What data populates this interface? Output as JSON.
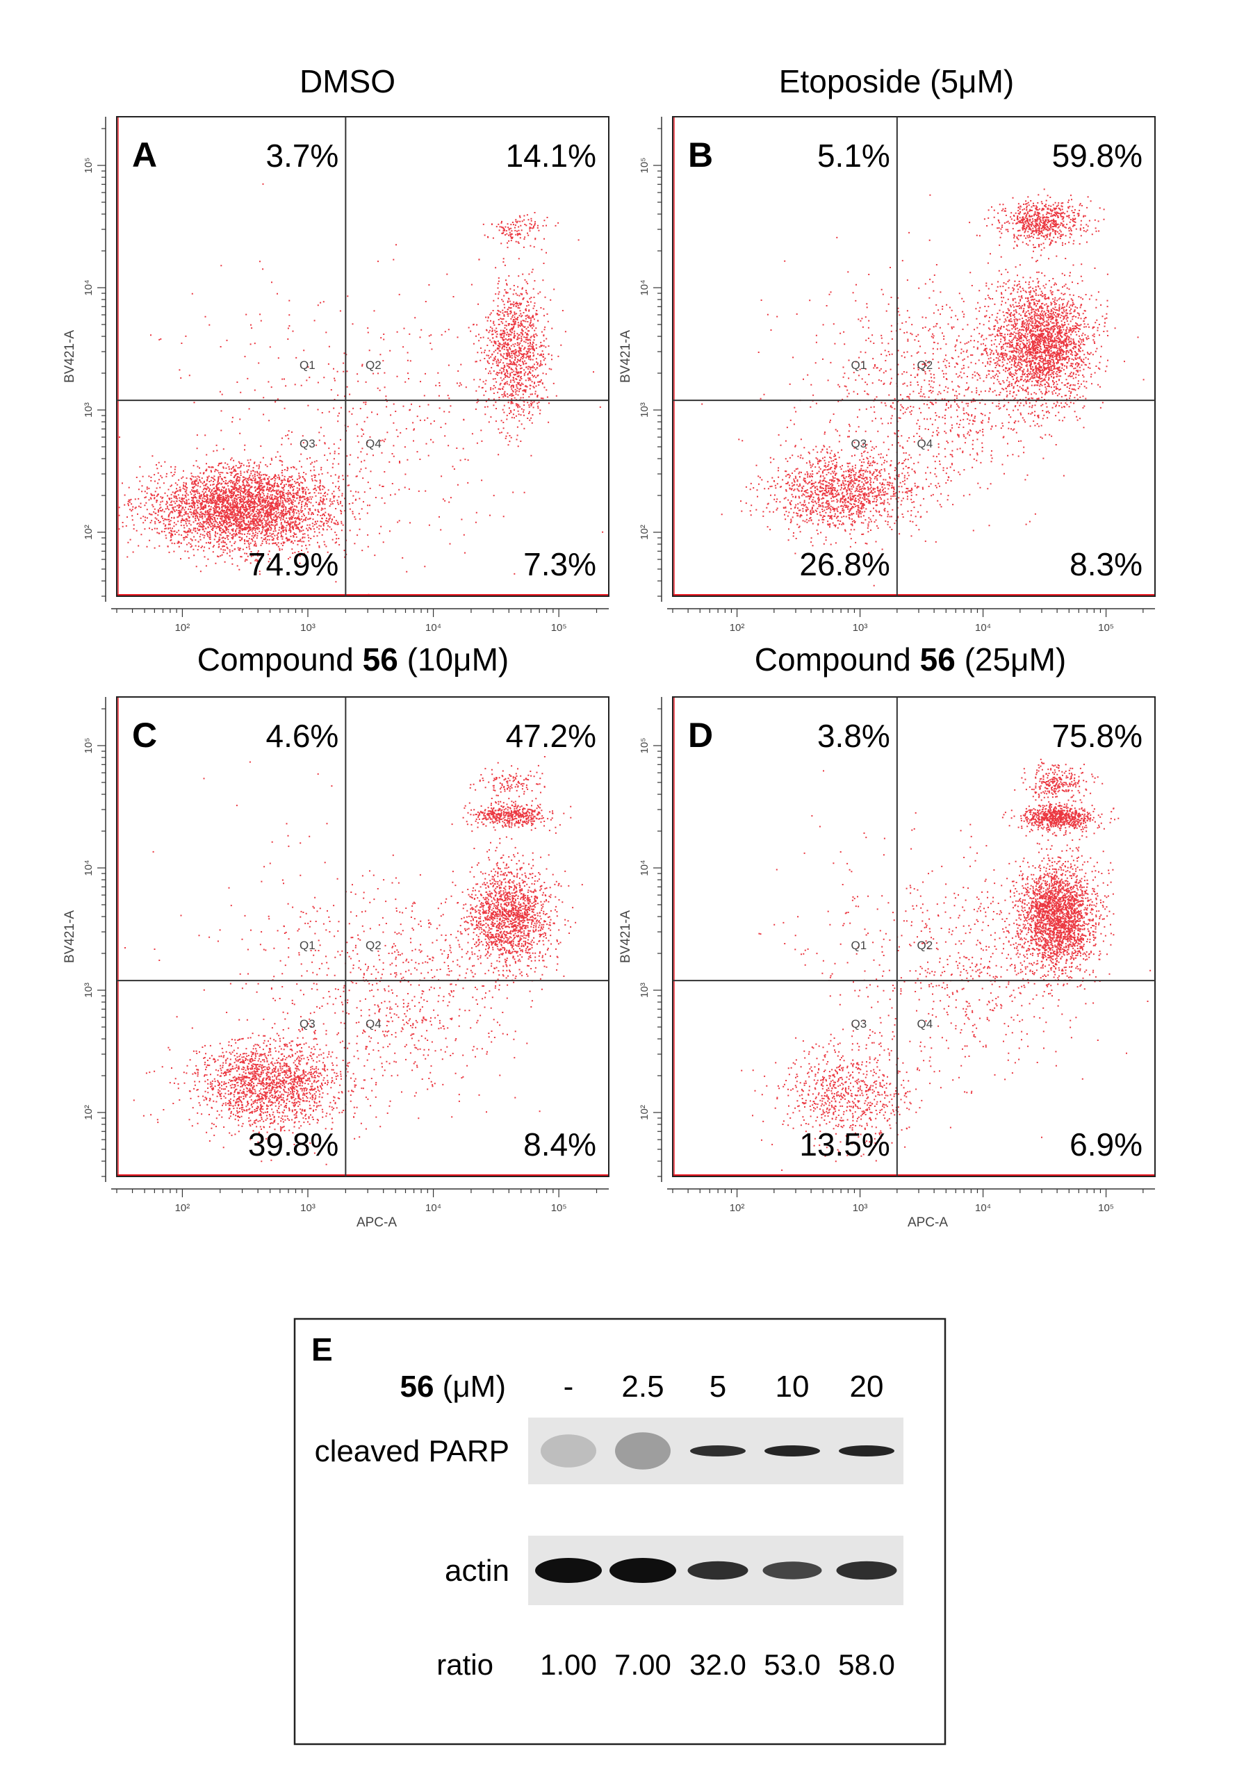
{
  "chart_data": [
    {
      "type": "scatter",
      "panel_id": "A",
      "title": "DMSO",
      "title_parts": [
        {
          "text": "DMSO",
          "bold": false
        }
      ],
      "xlabel": "",
      "ylabel": "BV421-A",
      "log_scale": true,
      "xlim": [
        30,
        250000
      ],
      "ylim": [
        30,
        250000
      ],
      "x_ticks": [
        "10²",
        "10³",
        "10⁴",
        "10⁵"
      ],
      "y_ticks": [
        "10²",
        "10³",
        "10⁴",
        "10⁵"
      ],
      "gate": {
        "x": 2000,
        "y": 1200
      },
      "quadrant_names": [
        "Q1",
        "Q2",
        "Q3",
        "Q4"
      ],
      "quadrant_percent": {
        "Q1": "3.7%",
        "Q2": "14.1%",
        "Q3": "74.9%",
        "Q4": "7.3%"
      },
      "point_color": "#e8141e",
      "clusters": [
        {
          "x": 300,
          "y": 160,
          "spread": [
            0.38,
            0.17
          ],
          "count": 3400
        },
        {
          "x": 45000,
          "y": 3000,
          "spread": [
            0.13,
            0.28
          ],
          "count": 1050
        },
        {
          "x": 45000,
          "y": 30000,
          "spread": [
            0.13,
            0.06
          ],
          "count": 120
        },
        {
          "x": 5000,
          "y": 700,
          "spread": [
            0.5,
            0.5
          ],
          "count": 300
        },
        {
          "x": 500,
          "y": 2000,
          "spread": [
            0.45,
            0.45
          ],
          "count": 110
        }
      ]
    },
    {
      "type": "scatter",
      "panel_id": "B",
      "title": "Etoposide (5μM)",
      "title_parts": [
        {
          "text": "Etoposide (5μM)",
          "bold": false
        }
      ],
      "xlabel": "",
      "ylabel": "BV421-A",
      "log_scale": true,
      "xlim": [
        30,
        250000
      ],
      "ylim": [
        30,
        250000
      ],
      "x_ticks": [
        "10²",
        "10³",
        "10⁴",
        "10⁵"
      ],
      "y_ticks": [
        "10²",
        "10³",
        "10⁴",
        "10⁵"
      ],
      "gate": {
        "x": 2000,
        "y": 1200
      },
      "quadrant_names": [
        "Q1",
        "Q2",
        "Q3",
        "Q4"
      ],
      "quadrant_percent": {
        "Q1": "5.1%",
        "Q2": "59.8%",
        "Q3": "26.8%",
        "Q4": "8.3%"
      },
      "point_color": "#e8141e",
      "clusters": [
        {
          "x": 700,
          "y": 220,
          "spread": [
            0.3,
            0.16
          ],
          "count": 1300
        },
        {
          "x": 30000,
          "y": 3500,
          "spread": [
            0.2,
            0.25
          ],
          "count": 2300
        },
        {
          "x": 30000,
          "y": 35000,
          "spread": [
            0.17,
            0.09
          ],
          "count": 650
        },
        {
          "x": 6000,
          "y": 1500,
          "spread": [
            0.42,
            0.42
          ],
          "count": 700
        },
        {
          "x": 1500,
          "y": 1500,
          "spread": [
            0.5,
            0.5
          ],
          "count": 220
        }
      ]
    },
    {
      "type": "scatter",
      "panel_id": "C",
      "title": "Compound 56 (10μM)",
      "title_parts": [
        {
          "text": "Compound ",
          "bold": false
        },
        {
          "text": "56",
          "bold": true
        },
        {
          "text": " (10μM)",
          "bold": false
        }
      ],
      "xlabel": "APC-A",
      "ylabel": "BV421-A",
      "log_scale": true,
      "xlim": [
        30,
        250000
      ],
      "ylim": [
        30,
        250000
      ],
      "x_ticks": [
        "10²",
        "10³",
        "10⁴",
        "10⁵"
      ],
      "y_ticks": [
        "10²",
        "10³",
        "10⁴",
        "10⁵"
      ],
      "gate": {
        "x": 2000,
        "y": 1200
      },
      "quadrant_names": [
        "Q1",
        "Q2",
        "Q3",
        "Q4"
      ],
      "quadrant_percent": {
        "Q1": "4.6%",
        "Q2": "47.2%",
        "Q3": "39.8%",
        "Q4": "8.4%"
      },
      "point_color": "#e8141e",
      "clusters": [
        {
          "x": 500,
          "y": 170,
          "spread": [
            0.3,
            0.18
          ],
          "count": 1700
        },
        {
          "x": 40000,
          "y": 4000,
          "spread": [
            0.17,
            0.22
          ],
          "count": 1500
        },
        {
          "x": 40000,
          "y": 27000,
          "spread": [
            0.15,
            0.05
          ],
          "count": 450
        },
        {
          "x": 40000,
          "y": 50000,
          "spread": [
            0.12,
            0.07
          ],
          "count": 120
        },
        {
          "x": 6000,
          "y": 900,
          "spread": [
            0.42,
            0.42
          ],
          "count": 600
        },
        {
          "x": 1000,
          "y": 2000,
          "spread": [
            0.5,
            0.5
          ],
          "count": 180
        }
      ]
    },
    {
      "type": "scatter",
      "panel_id": "D",
      "title": "Compound 56 (25μM)",
      "title_parts": [
        {
          "text": "Compound ",
          "bold": false
        },
        {
          "text": "56",
          "bold": true
        },
        {
          "text": " (25μM)",
          "bold": false
        }
      ],
      "xlabel": "APC-A",
      "ylabel": "BV421-A",
      "log_scale": true,
      "xlim": [
        30,
        250000
      ],
      "ylim": [
        30,
        250000
      ],
      "x_ticks": [
        "10²",
        "10³",
        "10⁴",
        "10⁵"
      ],
      "y_ticks": [
        "10²",
        "10³",
        "10⁴",
        "10⁵"
      ],
      "gate": {
        "x": 2000,
        "y": 1200
      },
      "quadrant_names": [
        "Q1",
        "Q2",
        "Q3",
        "Q4"
      ],
      "quadrant_percent": {
        "Q1": "3.8%",
        "Q2": "75.8%",
        "Q3": "13.5%",
        "Q4": "6.9%"
      },
      "point_color": "#e8141e",
      "clusters": [
        {
          "x": 800,
          "y": 150,
          "spread": [
            0.27,
            0.2
          ],
          "count": 700
        },
        {
          "x": 40000,
          "y": 4000,
          "spread": [
            0.16,
            0.22
          ],
          "count": 2300
        },
        {
          "x": 40000,
          "y": 26000,
          "spread": [
            0.15,
            0.05
          ],
          "count": 700
        },
        {
          "x": 40000,
          "y": 50000,
          "spread": [
            0.12,
            0.07
          ],
          "count": 250
        },
        {
          "x": 10000,
          "y": 1500,
          "spread": [
            0.4,
            0.42
          ],
          "count": 500
        },
        {
          "x": 1500,
          "y": 2500,
          "spread": [
            0.5,
            0.5
          ],
          "count": 150
        }
      ]
    },
    {
      "type": "table",
      "panel_id": "E",
      "treatment_label_bold": "56",
      "treatment_label_rest": " (μM)",
      "categories": [
        "-",
        "2.5",
        "5",
        "10",
        "20"
      ],
      "rows": [
        {
          "name": "cleaved PARP",
          "band_intensity": [
            0.25,
            0.45,
            0.85,
            0.9,
            0.9
          ]
        },
        {
          "name": "actin",
          "band_intensity": [
            1.0,
            1.0,
            0.85,
            0.75,
            0.85
          ]
        }
      ],
      "ratio_label": "ratio",
      "ratio_values": [
        "1.00",
        "7.00",
        "32.0",
        "53.0",
        "58.0"
      ],
      "ratio": [
        1.0,
        7.0,
        32.0,
        53.0,
        58.0
      ]
    }
  ]
}
